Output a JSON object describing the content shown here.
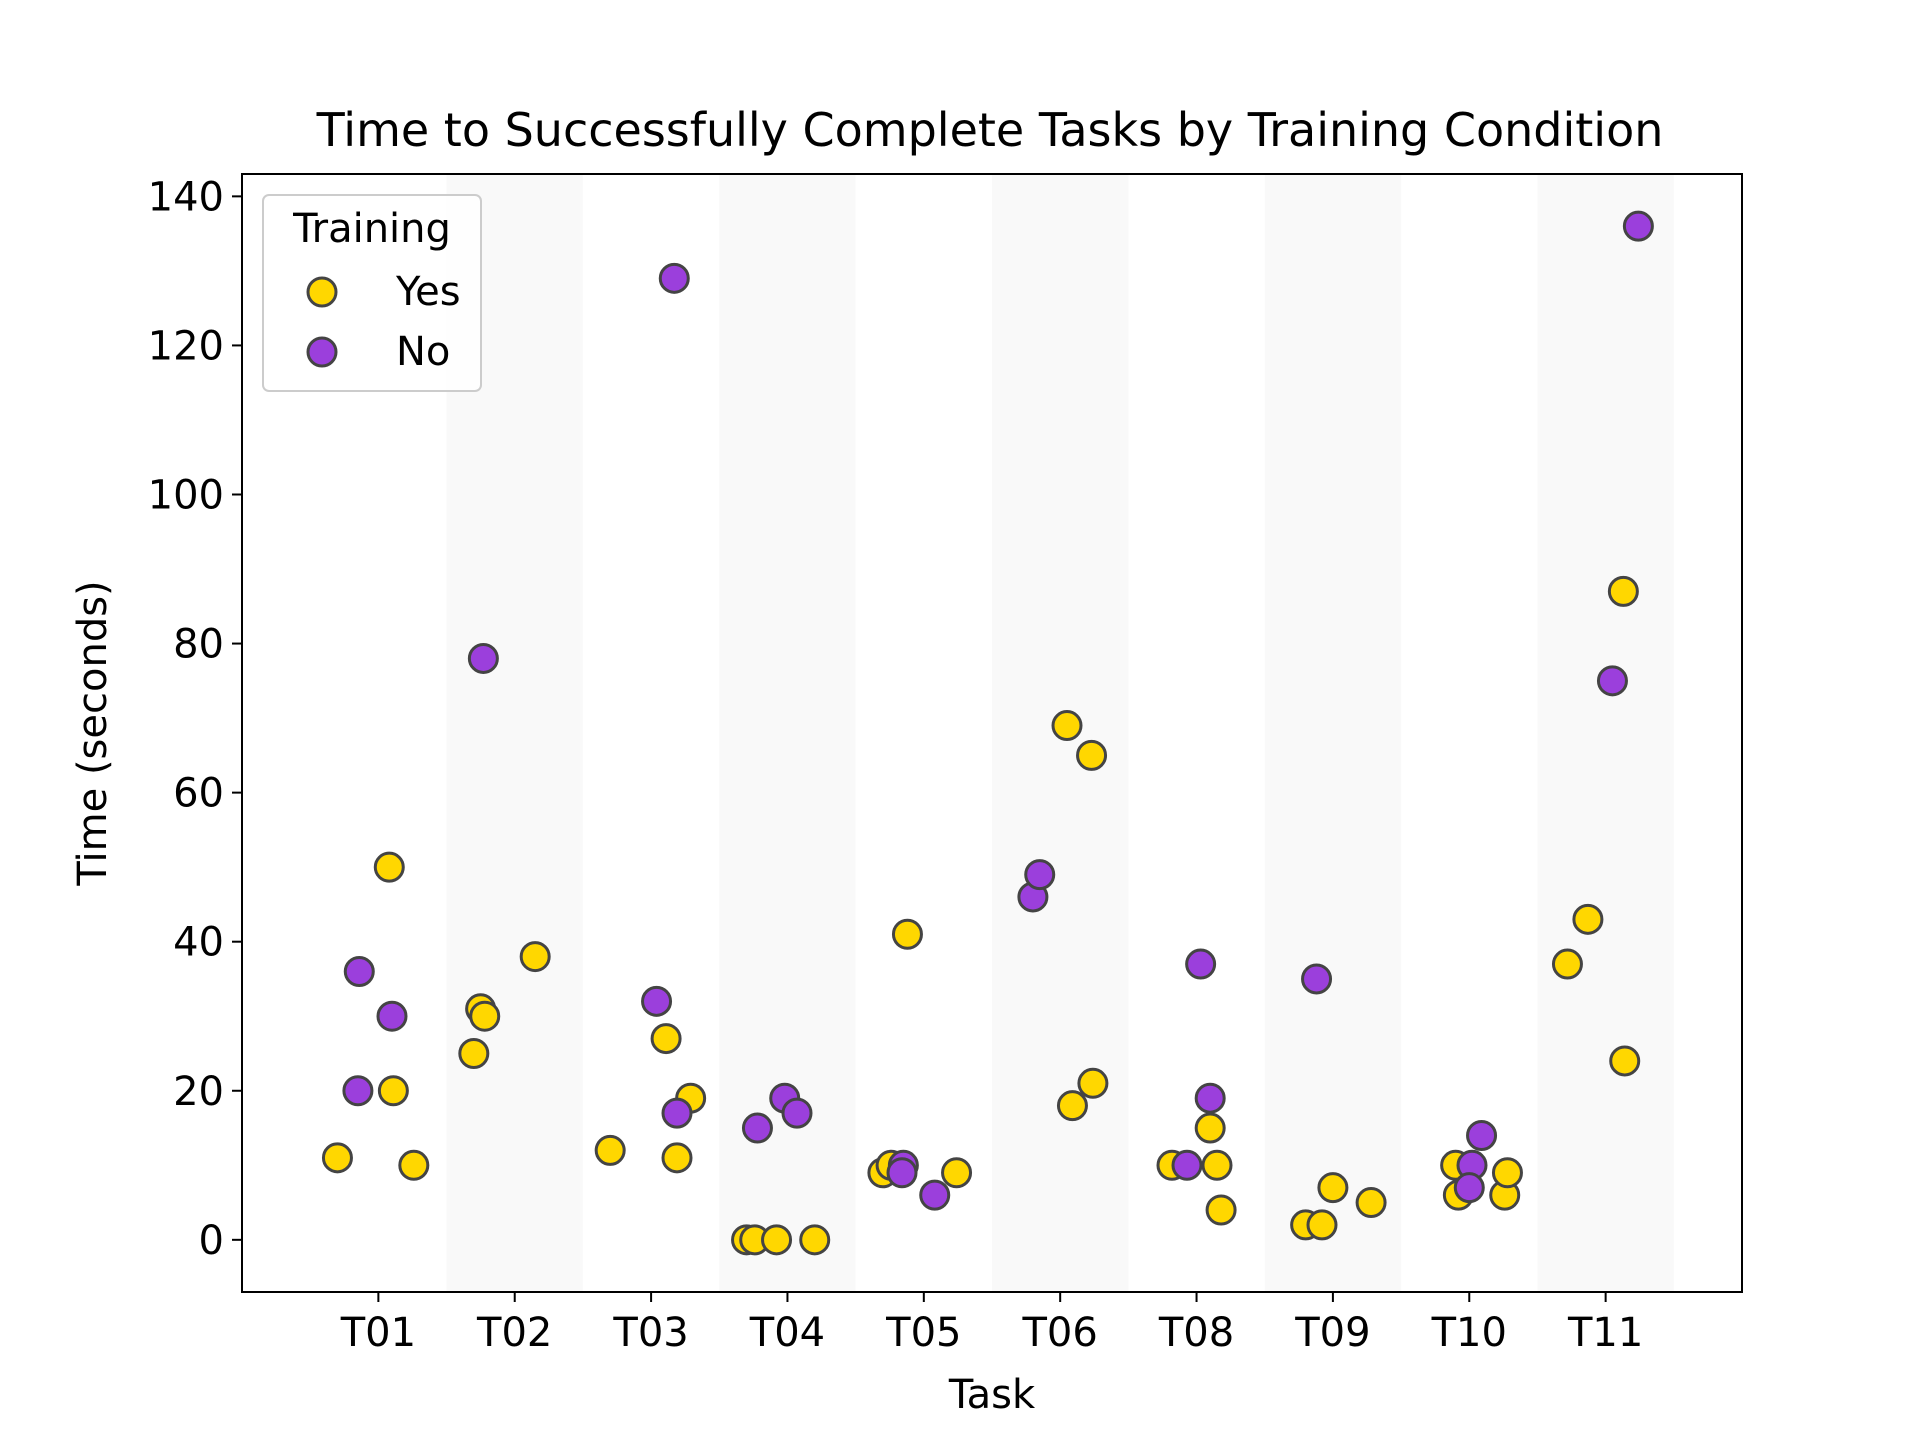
{
  "chart_data": {
    "type": "scatter",
    "title": "Time to Successfully Complete Tasks by Training Condition",
    "xlabel": "Task",
    "ylabel": "Time (seconds)",
    "categories": [
      "T01",
      "T02",
      "T03",
      "T04",
      "T05",
      "T06",
      "T08",
      "T09",
      "T10",
      "T11"
    ],
    "ylim": [
      -7,
      143
    ],
    "yticks": [
      0,
      20,
      40,
      60,
      80,
      100,
      120,
      140
    ],
    "grid": false,
    "alternating_band_color": "#f9f9f9",
    "legend": {
      "title": "Training",
      "placement": "top-left"
    },
    "series": [
      {
        "name": "Yes",
        "color": "#ffd700",
        "points": [
          {
            "task": "T01",
            "jitter": -0.3,
            "y": 11
          },
          {
            "task": "T01",
            "jitter": 0.08,
            "y": 50
          },
          {
            "task": "T01",
            "jitter": 0.11,
            "y": 20
          },
          {
            "task": "T01",
            "jitter": 0.26,
            "y": 10
          },
          {
            "task": "T02",
            "jitter": -0.3,
            "y": 25
          },
          {
            "task": "T02",
            "jitter": -0.25,
            "y": 31
          },
          {
            "task": "T02",
            "jitter": -0.22,
            "y": 30
          },
          {
            "task": "T02",
            "jitter": 0.15,
            "y": 38
          },
          {
            "task": "T03",
            "jitter": -0.3,
            "y": 12
          },
          {
            "task": "T03",
            "jitter": 0.11,
            "y": 27
          },
          {
            "task": "T03",
            "jitter": 0.19,
            "y": 11
          },
          {
            "task": "T03",
            "jitter": 0.29,
            "y": 19
          },
          {
            "task": "T04",
            "jitter": -0.3,
            "y": 0
          },
          {
            "task": "T04",
            "jitter": -0.24,
            "y": 0
          },
          {
            "task": "T04",
            "jitter": -0.08,
            "y": 0
          },
          {
            "task": "T04",
            "jitter": 0.2,
            "y": 0
          },
          {
            "task": "T05",
            "jitter": -0.3,
            "y": 9
          },
          {
            "task": "T05",
            "jitter": -0.24,
            "y": 10
          },
          {
            "task": "T05",
            "jitter": -0.12,
            "y": 41
          },
          {
            "task": "T05",
            "jitter": 0.24,
            "y": 9
          },
          {
            "task": "T06",
            "jitter": 0.05,
            "y": 69
          },
          {
            "task": "T06",
            "jitter": 0.09,
            "y": 18
          },
          {
            "task": "T06",
            "jitter": 0.23,
            "y": 65
          },
          {
            "task": "T06",
            "jitter": 0.24,
            "y": 21
          },
          {
            "task": "T08",
            "jitter": -0.18,
            "y": 10
          },
          {
            "task": "T08",
            "jitter": 0.1,
            "y": 15
          },
          {
            "task": "T08",
            "jitter": 0.15,
            "y": 10
          },
          {
            "task": "T08",
            "jitter": 0.18,
            "y": 4
          },
          {
            "task": "T09",
            "jitter": -0.2,
            "y": 2
          },
          {
            "task": "T09",
            "jitter": -0.08,
            "y": 2
          },
          {
            "task": "T09",
            "jitter": 0.0,
            "y": 7
          },
          {
            "task": "T09",
            "jitter": 0.28,
            "y": 5
          },
          {
            "task": "T10",
            "jitter": -0.1,
            "y": 10
          },
          {
            "task": "T10",
            "jitter": -0.08,
            "y": 6
          },
          {
            "task": "T10",
            "jitter": 0.26,
            "y": 6
          },
          {
            "task": "T10",
            "jitter": 0.28,
            "y": 9
          },
          {
            "task": "T11",
            "jitter": -0.28,
            "y": 37
          },
          {
            "task": "T11",
            "jitter": -0.13,
            "y": 43
          },
          {
            "task": "T11",
            "jitter": 0.13,
            "y": 87
          },
          {
            "task": "T11",
            "jitter": 0.14,
            "y": 24
          }
        ]
      },
      {
        "name": "No",
        "color": "#9b3fdc",
        "points": [
          {
            "task": "T01",
            "jitter": -0.14,
            "y": 36
          },
          {
            "task": "T01",
            "jitter": -0.15,
            "y": 20
          },
          {
            "task": "T01",
            "jitter": 0.1,
            "y": 30
          },
          {
            "task": "T02",
            "jitter": -0.23,
            "y": 78
          },
          {
            "task": "T03",
            "jitter": 0.04,
            "y": 32
          },
          {
            "task": "T03",
            "jitter": 0.17,
            "y": 129
          },
          {
            "task": "T03",
            "jitter": 0.19,
            "y": 17
          },
          {
            "task": "T04",
            "jitter": -0.22,
            "y": 15
          },
          {
            "task": "T04",
            "jitter": -0.02,
            "y": 19
          },
          {
            "task": "T04",
            "jitter": 0.07,
            "y": 17
          },
          {
            "task": "T05",
            "jitter": -0.15,
            "y": 10
          },
          {
            "task": "T05",
            "jitter": -0.16,
            "y": 9
          },
          {
            "task": "T05",
            "jitter": 0.08,
            "y": 6
          },
          {
            "task": "T06",
            "jitter": -0.2,
            "y": 46
          },
          {
            "task": "T06",
            "jitter": -0.15,
            "y": 49
          },
          {
            "task": "T08",
            "jitter": -0.07,
            "y": 10
          },
          {
            "task": "T08",
            "jitter": 0.03,
            "y": 37
          },
          {
            "task": "T08",
            "jitter": 0.1,
            "y": 19
          },
          {
            "task": "T09",
            "jitter": -0.12,
            "y": 35
          },
          {
            "task": "T10",
            "jitter": 0.02,
            "y": 10
          },
          {
            "task": "T10",
            "jitter": 0.0,
            "y": 7
          },
          {
            "task": "T10",
            "jitter": 0.09,
            "y": 14
          },
          {
            "task": "T11",
            "jitter": 0.05,
            "y": 75
          },
          {
            "task": "T11",
            "jitter": 0.24,
            "y": 136
          }
        ]
      }
    ]
  }
}
